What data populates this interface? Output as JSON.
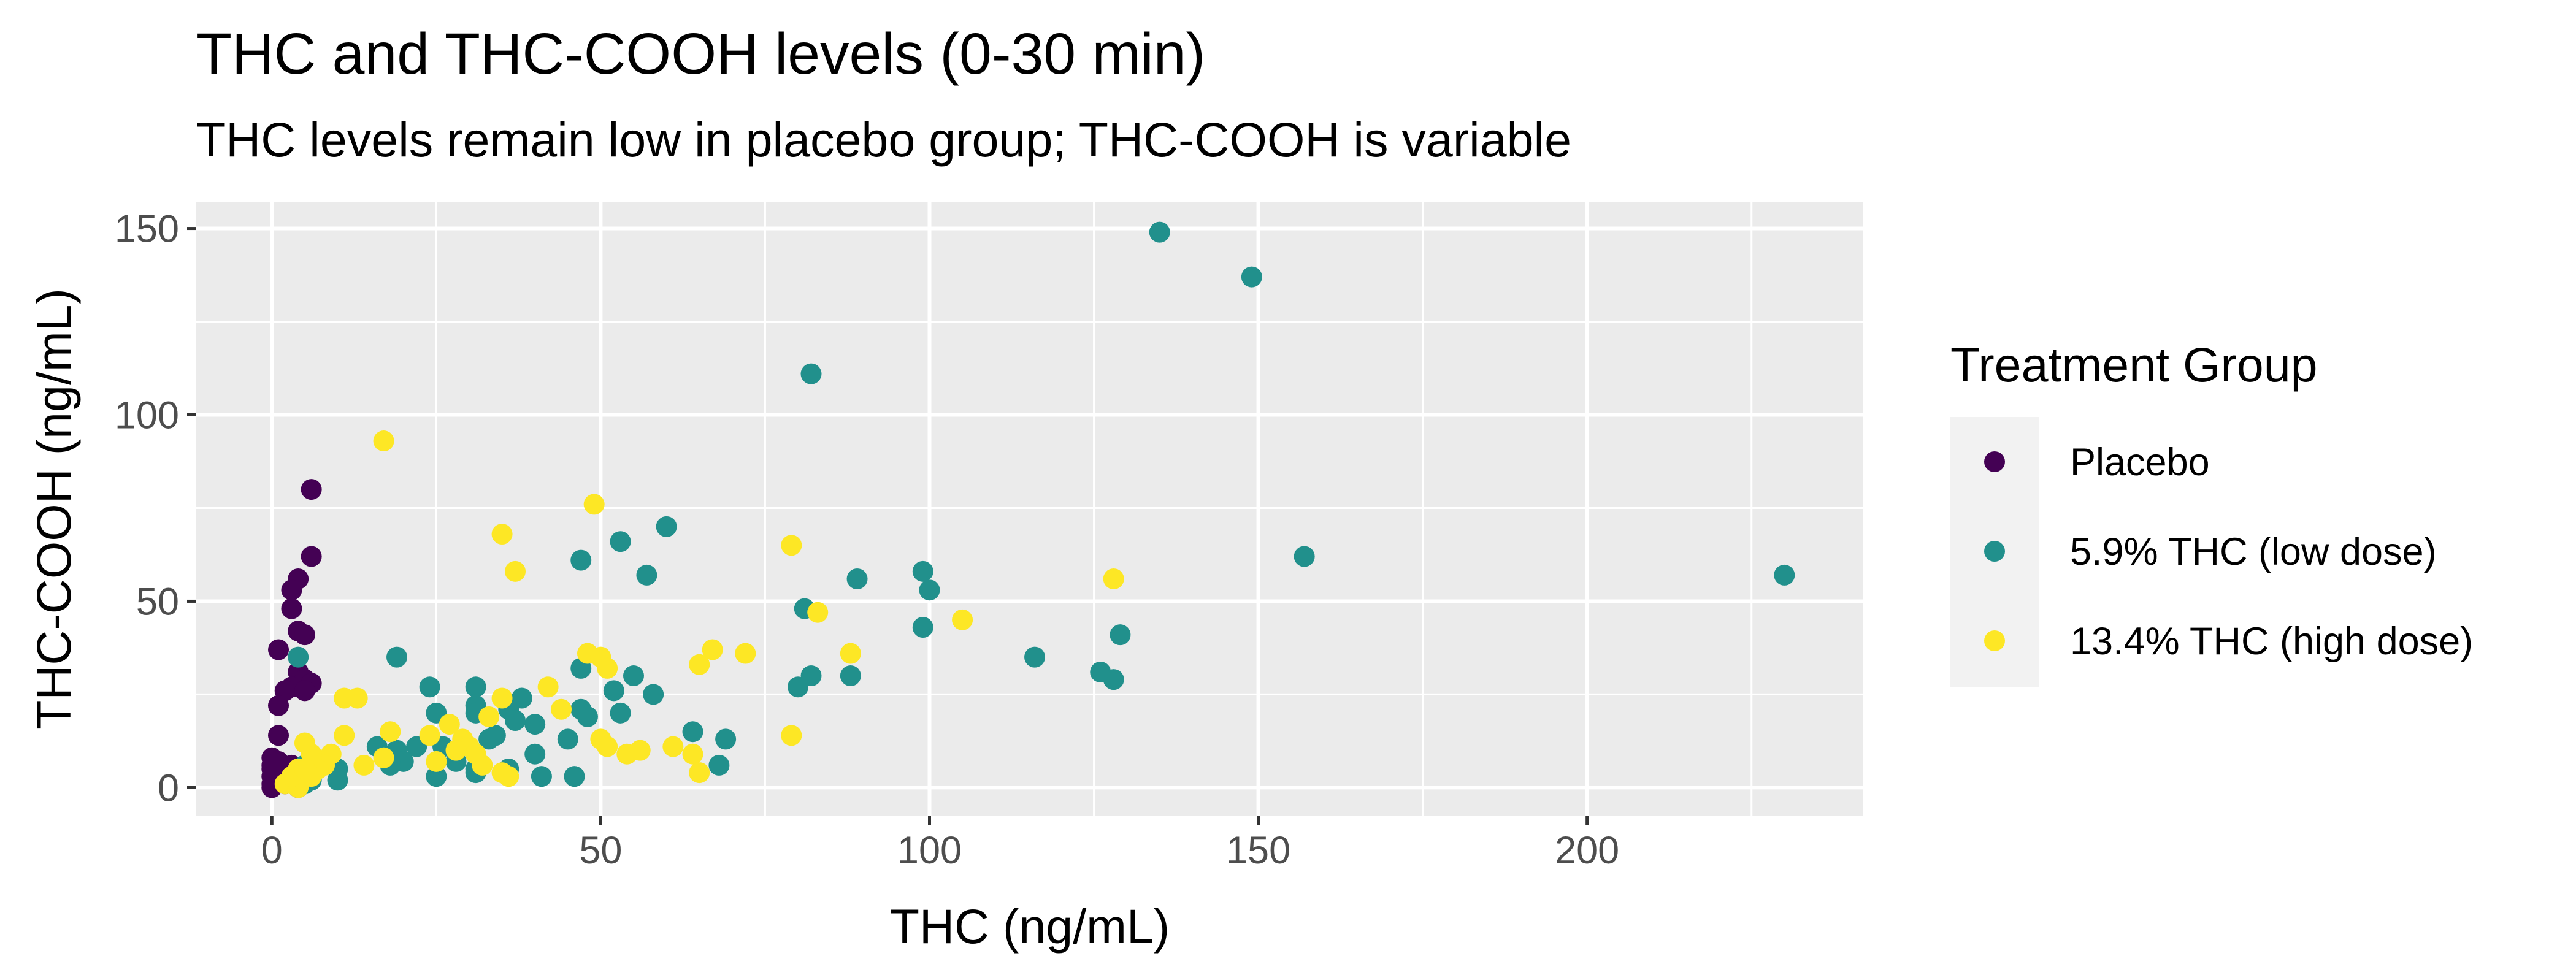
{
  "chart_data": {
    "type": "scatter",
    "title": "THC and THC-COOH levels (0-30 min)",
    "subtitle": "THC levels remain low in placebo group; THC-COOH is variable",
    "xlabel": "THC (ng/mL)",
    "ylabel": "THC-COOH (ng/mL)",
    "xlim": [
      -11.5,
      242
    ],
    "ylim": [
      -7.5,
      157
    ],
    "x_ticks": [
      0,
      50,
      100,
      150,
      200
    ],
    "y_ticks": [
      0,
      50,
      100,
      150
    ],
    "grid": true,
    "legend": {
      "title": "Treatment Group",
      "position": "right"
    },
    "series": [
      {
        "name": "Placebo",
        "color": "#440154",
        "points": [
          [
            6,
            80
          ],
          [
            6,
            62
          ],
          [
            4,
            56
          ],
          [
            3,
            53
          ],
          [
            3,
            48
          ],
          [
            4,
            42
          ],
          [
            5,
            41
          ],
          [
            1,
            37
          ],
          [
            4,
            31
          ],
          [
            5,
            29
          ],
          [
            6,
            28
          ],
          [
            3,
            27
          ],
          [
            2,
            26
          ],
          [
            5,
            26
          ],
          [
            1,
            22
          ],
          [
            1,
            14
          ],
          [
            0,
            8
          ],
          [
            0,
            6
          ],
          [
            0,
            5
          ],
          [
            0,
            3
          ],
          [
            0,
            1
          ],
          [
            1,
            2
          ],
          [
            2,
            4
          ],
          [
            1,
            7
          ],
          [
            3,
            6
          ],
          [
            4,
            0
          ],
          [
            2,
            1
          ],
          [
            0,
            0
          ]
        ]
      },
      {
        "name": "5.9% THC (low dose)",
        "color": "#21908C",
        "points": [
          [
            135,
            149
          ],
          [
            149,
            137
          ],
          [
            82,
            111
          ],
          [
            230,
            57
          ],
          [
            157,
            62
          ],
          [
            60,
            70
          ],
          [
            53,
            66
          ],
          [
            47,
            61
          ],
          [
            57,
            57
          ],
          [
            89,
            56
          ],
          [
            99,
            58
          ],
          [
            100,
            53
          ],
          [
            81,
            48
          ],
          [
            99,
            43
          ],
          [
            129,
            41
          ],
          [
            116,
            35
          ],
          [
            126,
            31
          ],
          [
            128,
            29
          ],
          [
            82,
            30
          ],
          [
            88,
            30
          ],
          [
            80,
            27
          ],
          [
            4,
            35
          ],
          [
            19,
            35
          ],
          [
            47,
            32
          ],
          [
            55,
            30
          ],
          [
            52,
            26
          ],
          [
            58,
            25
          ],
          [
            24,
            27
          ],
          [
            31,
            27
          ],
          [
            38,
            24
          ],
          [
            36,
            21
          ],
          [
            31,
            22
          ],
          [
            25,
            20
          ],
          [
            31,
            20
          ],
          [
            47,
            21
          ],
          [
            53,
            20
          ],
          [
            48,
            19
          ],
          [
            40,
            17
          ],
          [
            64,
            15
          ],
          [
            69,
            13
          ],
          [
            45,
            13
          ],
          [
            33,
            13
          ],
          [
            26,
            11
          ],
          [
            22,
            11
          ],
          [
            19,
            10
          ],
          [
            16,
            11
          ],
          [
            20,
            7
          ],
          [
            18,
            6
          ],
          [
            40,
            9
          ],
          [
            28,
            7
          ],
          [
            36,
            5
          ],
          [
            31,
            5
          ],
          [
            31,
            4
          ],
          [
            25,
            3
          ],
          [
            41,
            3
          ],
          [
            46,
            3
          ],
          [
            68,
            6
          ],
          [
            10,
            5
          ],
          [
            10,
            2
          ],
          [
            6,
            7
          ],
          [
            5,
            6
          ],
          [
            4,
            2
          ],
          [
            5,
            1
          ],
          [
            6,
            2
          ],
          [
            37,
            18
          ],
          [
            34,
            14
          ],
          [
            4,
            3
          ],
          [
            3,
            2
          ]
        ]
      },
      {
        "name": "13.4% THC (high dose)",
        "color": "#FDE725",
        "points": [
          [
            17,
            93
          ],
          [
            49,
            76
          ],
          [
            35,
            68
          ],
          [
            79,
            65
          ],
          [
            37,
            58
          ],
          [
            128,
            56
          ],
          [
            83,
            47
          ],
          [
            105,
            45
          ],
          [
            88,
            36
          ],
          [
            67,
            37
          ],
          [
            72,
            36
          ],
          [
            65,
            33
          ],
          [
            48,
            36
          ],
          [
            50,
            35
          ],
          [
            51,
            32
          ],
          [
            42,
            27
          ],
          [
            35,
            24
          ],
          [
            44,
            21
          ],
          [
            33,
            19
          ],
          [
            13,
            24
          ],
          [
            11,
            24
          ],
          [
            18,
            15
          ],
          [
            11,
            14
          ],
          [
            9,
            9
          ],
          [
            17,
            8
          ],
          [
            14,
            6
          ],
          [
            8,
            6
          ],
          [
            6,
            9
          ],
          [
            7,
            5
          ],
          [
            6,
            3
          ],
          [
            5,
            12
          ],
          [
            4,
            5
          ],
          [
            4,
            3
          ],
          [
            3,
            1
          ],
          [
            4,
            0
          ],
          [
            2,
            1
          ],
          [
            50,
            13
          ],
          [
            51,
            11
          ],
          [
            54,
            9
          ],
          [
            56,
            10
          ],
          [
            61,
            11
          ],
          [
            64,
            9
          ],
          [
            65,
            4
          ],
          [
            79,
            14
          ],
          [
            27,
            17
          ],
          [
            29,
            13
          ],
          [
            24,
            14
          ],
          [
            30,
            11
          ],
          [
            31,
            9
          ],
          [
            28,
            10
          ],
          [
            25,
            7
          ],
          [
            32,
            6
          ],
          [
            35,
            4
          ],
          [
            36,
            3
          ],
          [
            3,
            3
          ],
          [
            5,
            5
          ]
        ]
      }
    ]
  }
}
